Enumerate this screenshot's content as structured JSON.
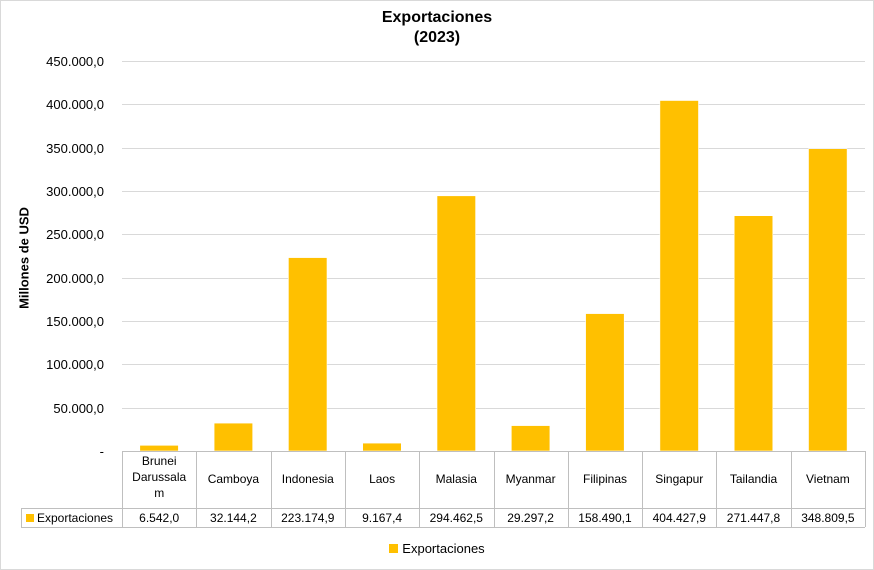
{
  "chart_data": {
    "type": "bar",
    "title": "Exportaciones",
    "subtitle": "(2023)",
    "ylabel": "Millones de USD",
    "xlabel": "",
    "ylim": [
      0,
      450000
    ],
    "yticks": [
      0,
      50000,
      100000,
      150000,
      200000,
      250000,
      300000,
      350000,
      400000,
      450000
    ],
    "ytick_labels": [
      "-",
      "50.000,0",
      "100.000,0",
      "150.000,0",
      "200.000,0",
      "250.000,0",
      "300.000,0",
      "350.000,0",
      "400.000,0",
      "450.000,0"
    ],
    "categories": [
      "Brunei Darussalam",
      "Camboya",
      "Indonesia",
      "Laos",
      "Malasia",
      "Myanmar",
      "Filipinas",
      "Singapur",
      "Tailandia",
      "Vietnam"
    ],
    "series": [
      {
        "name": "Exportaciones",
        "color": "#ffc000",
        "values": [
          6542.0,
          32144.2,
          223174.9,
          9167.4,
          294462.5,
          29297.2,
          158490.1,
          404427.9,
          271447.8,
          348809.5
        ],
        "labels": [
          "6.542,0",
          "32.144,2",
          "223.174,9",
          "9.167,4",
          "294.462,5",
          "29.297,2",
          "158.490,1",
          "404.427,9",
          "271.447,8",
          "348.809,5"
        ]
      }
    ],
    "grid": true,
    "data_table": true,
    "legend_position": "bottom"
  },
  "category_label_lines": [
    [
      "Brunei",
      "Darussala",
      "m"
    ],
    [
      "Camboya"
    ],
    [
      "Indonesia"
    ],
    [
      "Laos"
    ],
    [
      "Malasia"
    ],
    [
      "Myanmar"
    ],
    [
      "Filipinas"
    ],
    [
      "Singapur"
    ],
    [
      "Tailandia"
    ],
    [
      "Vietnam"
    ]
  ],
  "legend": {
    "label": "Exportaciones"
  }
}
